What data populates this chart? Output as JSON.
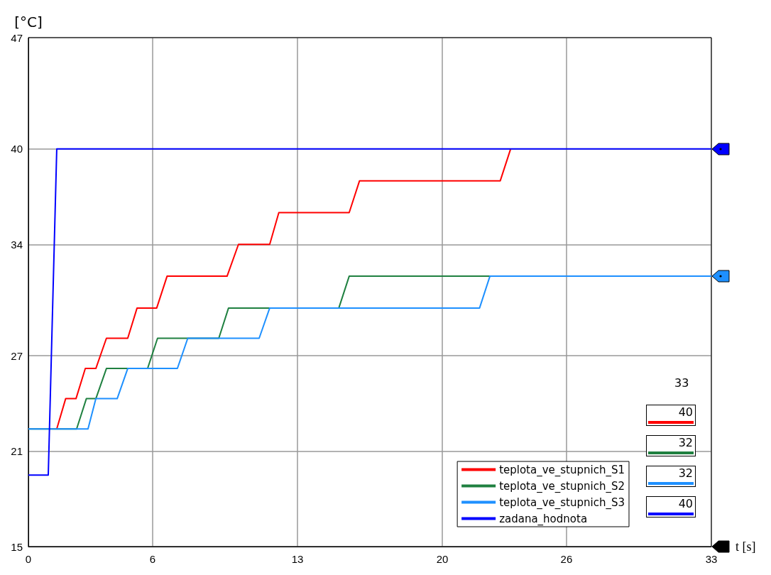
{
  "chart_data": {
    "type": "line",
    "xlabel": "t [s]",
    "ylabel": "[°C]",
    "xlim": [
      0,
      33
    ],
    "xticks": [
      0,
      6,
      13,
      20,
      26,
      33
    ],
    "ylim": [
      15,
      47
    ],
    "yticks": [
      15,
      21,
      27,
      34,
      40,
      47
    ],
    "grid": true,
    "legend": "bottom right",
    "marker": "none",
    "line_style": "solid",
    "annotations": [
      "33",
      "40",
      "32",
      "32",
      "40"
    ],
    "series": [
      {
        "name": "teplota_ve_stupnich_S1",
        "color": "#ff0000",
        "x": [
          1.37,
          1.8,
          2.3,
          2.75,
          3.26,
          3.77,
          4.8,
          5.25,
          6.2,
          6.7,
          9.6,
          10.15,
          11.66,
          12.1,
          15.5,
          16.0,
          22.8,
          23.3
        ],
        "values": [
          22.4,
          24.3,
          24.3,
          26.2,
          26.2,
          28.1,
          28.1,
          30,
          30,
          32,
          32,
          34,
          34,
          36,
          36,
          38,
          38,
          40
        ]
      },
      {
        "name": "teplota_ve_stupnich_S2",
        "color": "#1f8040",
        "x": [
          0,
          2.33,
          2.8,
          3.26,
          3.77,
          5.76,
          6.24,
          9.2,
          9.67,
          15.0,
          15.5,
          33
        ],
        "values": [
          22.4,
          22.4,
          24.3,
          24.3,
          26.2,
          26.2,
          28.1,
          28.1,
          30,
          30,
          32,
          32
        ]
      },
      {
        "name": "teplota_ve_stupnich_S3",
        "color": "#1e90ff",
        "x": [
          0,
          2.88,
          3.26,
          4.29,
          4.8,
          7.2,
          7.7,
          11.15,
          11.66,
          21.8,
          22.3,
          33
        ],
        "values": [
          22.4,
          22.4,
          24.3,
          24.3,
          26.2,
          26.2,
          28.1,
          28.1,
          30,
          30,
          32,
          32
        ]
      },
      {
        "name": "zadana_hodnota",
        "color": "#0000ff",
        "x": [
          0,
          0.96,
          1.37,
          33
        ],
        "values": [
          19.5,
          19.5,
          40,
          40
        ]
      }
    ]
  }
}
